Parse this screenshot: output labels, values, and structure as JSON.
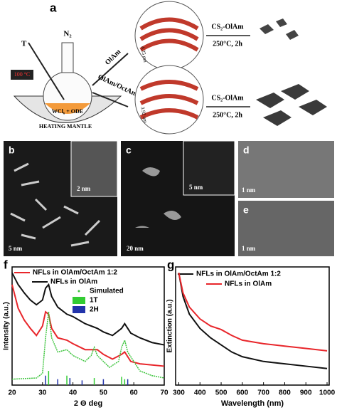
{
  "figure": {
    "panel_a": {
      "label": "a",
      "thermo": "T",
      "gas": "N₂",
      "temperature": "100 °C",
      "flask": "WCl₆ + ODE",
      "mantle": "HEATING MANTLE",
      "route_1": "OlAm",
      "route_2": "OlAm/OctAm",
      "spacing_1": "4.25 nm",
      "spacing_2": "3.92 nm",
      "reagent_1": "CS₂-OlAm",
      "condition_1": "250°C, 2h",
      "reagent_2": "CS₂-OlAm",
      "condition_2": "250°C, 2h"
    },
    "panel_b": {
      "label": "b",
      "scale": "5 nm",
      "inset_scale": "2 nm"
    },
    "panel_c": {
      "label": "c",
      "scale": "20 nm",
      "inset_scale": "5 nm"
    },
    "panel_d": {
      "label": "d",
      "scale": "1 nm"
    },
    "panel_e": {
      "label": "e",
      "scale": "1 nm"
    }
  },
  "chart_data": [
    {
      "type": "line",
      "label": "f",
      "x_label": "2 Θ deg",
      "y_label": "Intensity (a.u.)",
      "xlim": [
        20,
        70
      ],
      "xticks": [
        20,
        30,
        40,
        50,
        60,
        70
      ],
      "ylim": [
        0,
        100
      ],
      "yticks": [],
      "series": [
        {
          "name": "NFLs in OlAm/OctAm 1:2",
          "color": "#e8262b",
          "style": "line",
          "x": [
            20,
            22,
            24,
            26,
            28,
            30,
            31,
            32,
            33,
            35,
            38,
            40,
            44,
            48,
            50,
            53,
            56,
            57,
            59,
            62,
            66,
            70
          ],
          "values": [
            85,
            65,
            55,
            48,
            42,
            50,
            62,
            60,
            48,
            40,
            38,
            35,
            30,
            30,
            26,
            22,
            26,
            28,
            20,
            18,
            17,
            16
          ]
        },
        {
          "name": "NFLs in OlAm",
          "color": "#111111",
          "style": "line",
          "x": [
            20,
            22,
            24,
            26,
            28,
            30,
            31,
            32,
            33,
            35,
            38,
            40,
            44,
            48,
            50,
            53,
            56,
            57,
            59,
            62,
            66,
            70
          ],
          "values": [
            95,
            85,
            78,
            72,
            68,
            72,
            82,
            85,
            75,
            66,
            60,
            58,
            52,
            48,
            45,
            42,
            48,
            52,
            44,
            40,
            36,
            34
          ]
        },
        {
          "name": "Simulated",
          "color": "#3cc43c",
          "style": "dots",
          "x": [
            20,
            28,
            30,
            31,
            32,
            33,
            35,
            38,
            40,
            44,
            46,
            47,
            48,
            52,
            55,
            56,
            57,
            58,
            62,
            66,
            70
          ],
          "values": [
            5,
            6,
            10,
            40,
            62,
            40,
            28,
            30,
            25,
            20,
            25,
            32,
            25,
            15,
            20,
            32,
            38,
            28,
            12,
            8,
            6
          ]
        },
        {
          "name": "1T",
          "color": "#33cc33",
          "style": "sticks",
          "x": [
            32,
            38,
            39,
            47,
            56,
            57
          ],
          "values": [
            12,
            8,
            5,
            6,
            7,
            5
          ]
        },
        {
          "name": "2H",
          "color": "#2233aa",
          "style": "sticks",
          "x": [
            31,
            35,
            39,
            43,
            50,
            58
          ],
          "values": [
            8,
            5,
            6,
            4,
            5,
            5
          ]
        }
      ]
    },
    {
      "type": "line",
      "label": "g",
      "x_label": "Wavelength (nm)",
      "y_label": "Extinction (a.u.)",
      "xlim": [
        285,
        1010
      ],
      "xticks": [
        300,
        400,
        500,
        600,
        700,
        800,
        900,
        1000
      ],
      "ylim": [
        0,
        100
      ],
      "yticks": [],
      "series": [
        {
          "name": "NFLs in OlAm/OctAm 1:2",
          "color": "#111111",
          "style": "line",
          "x": [
            300,
            320,
            350,
            400,
            450,
            500,
            550,
            600,
            700,
            800,
            900,
            1000
          ],
          "values": [
            95,
            75,
            60,
            48,
            40,
            34,
            28,
            24,
            20,
            18,
            16,
            14
          ]
        },
        {
          "name": "NFLs in OlAm",
          "color": "#e8262b",
          "style": "line",
          "x": [
            300,
            320,
            350,
            400,
            450,
            500,
            550,
            600,
            700,
            800,
            900,
            1000
          ],
          "values": [
            95,
            78,
            66,
            56,
            50,
            47,
            42,
            38,
            35,
            33,
            31,
            29
          ]
        }
      ]
    }
  ]
}
